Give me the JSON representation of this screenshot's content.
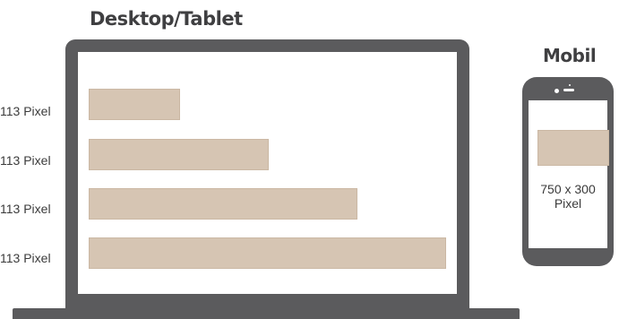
{
  "desktop": {
    "title": "Desktop/Tablet",
    "banners": [
      {
        "label": "113 Pixel"
      },
      {
        "label": "113 Pixel"
      },
      {
        "label": "113 Pixel"
      },
      {
        "label": "113 Pixel"
      }
    ]
  },
  "mobile": {
    "title": "Mobil",
    "banner_size_line1": "750 x 300",
    "banner_size_line2": "Pixel"
  },
  "colors": {
    "device": "#5b5b5d",
    "banner": "#d6c5b3",
    "text": "#3b3b3b"
  }
}
